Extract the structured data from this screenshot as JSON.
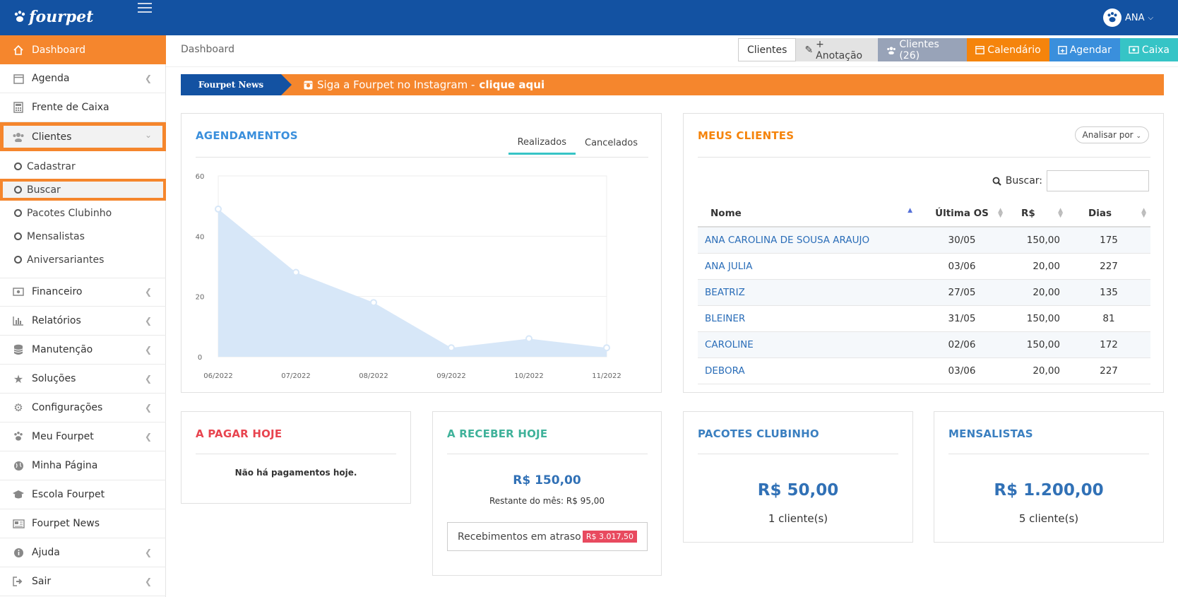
{
  "app": {
    "brand": "fourpet",
    "user": "ANA"
  },
  "colors": {
    "primary": "#1352a2",
    "accent": "#f5862d",
    "teal": "#36c4c6",
    "danger": "#e84a5f"
  },
  "sidebar": {
    "items": [
      {
        "label": "Dashboard",
        "icon": "home-icon"
      },
      {
        "label": "Agenda",
        "icon": "calendar-icon"
      },
      {
        "label": "Frente de Caixa",
        "icon": "calculator-icon"
      },
      {
        "label": "Clientes",
        "icon": "users-icon"
      },
      {
        "label": "Financeiro",
        "icon": "money-icon"
      },
      {
        "label": "Relatórios",
        "icon": "bar-chart-icon"
      },
      {
        "label": "Manutenção",
        "icon": "database-icon"
      },
      {
        "label": "Soluções",
        "icon": "star-icon"
      },
      {
        "label": "Configurações",
        "icon": "gears-icon"
      },
      {
        "label": "Meu Fourpet",
        "icon": "paw-icon"
      },
      {
        "label": "Minha Página",
        "icon": "globe-icon"
      },
      {
        "label": "Escola Fourpet",
        "icon": "graduation-cap-icon"
      },
      {
        "label": "Fourpet News",
        "icon": "newspaper-icon"
      },
      {
        "label": "Ajuda",
        "icon": "info-icon"
      },
      {
        "label": "Sair",
        "icon": "sign-out-icon"
      }
    ],
    "subitems": [
      "Cadastrar",
      "Buscar",
      "Pacotes Clubinho",
      "Mensalistas",
      "Aniversariantes"
    ]
  },
  "header": {
    "breadcrumb": "Dashboard",
    "buttons": [
      "Clientes",
      "+ Anotação",
      "Clientes (26)",
      "Calendário",
      "Agendar",
      "Caixa"
    ]
  },
  "news": {
    "tag": "Fourpet News",
    "text": "Siga a Fourpet no Instagram - ",
    "link": "clique aqui"
  },
  "agendamentos": {
    "title": "AGENDAMENTOS",
    "tabs": [
      "Realizados",
      "Cancelados"
    ]
  },
  "chart_data": {
    "type": "area",
    "x": [
      "06/2022",
      "07/2022",
      "08/2022",
      "09/2022",
      "10/2022",
      "11/2022"
    ],
    "series": [
      {
        "values": [
          49,
          28,
          18,
          3,
          6,
          3
        ]
      }
    ],
    "ylim": [
      0,
      60
    ],
    "yticks": [
      "0",
      "20",
      "40",
      "60"
    ],
    "grid": true,
    "color": "#d7e7f8"
  },
  "clientes": {
    "title": "MEUS CLIENTES",
    "analyze_label": "Analisar por",
    "search_label": "Buscar:",
    "search_value": "",
    "columns": [
      "Nome",
      "Última OS",
      "R$",
      "Dias"
    ],
    "rows": [
      [
        "ANA CAROLINA DE SOUSA ARAUJO",
        "30/05",
        "150,00",
        "175"
      ],
      [
        "ANA JULIA",
        "03/06",
        "20,00",
        "227"
      ],
      [
        "BEATRIZ",
        "27/05",
        "20,00",
        "135"
      ],
      [
        "BLEINER",
        "31/05",
        "150,00",
        "81"
      ],
      [
        "CAROLINE",
        "02/06",
        "150,00",
        "172"
      ],
      [
        "DEBORA",
        "03/06",
        "20,00",
        "227"
      ]
    ]
  },
  "pagar": {
    "title": "A PAGAR HOJE",
    "text": "Não há pagamentos hoje."
  },
  "receber": {
    "title": "A RECEBER HOJE",
    "amount": "R$ 150,00",
    "restante": "Restante do mês: R$ 95,00",
    "atraso_label": "Recebimentos em atraso",
    "atraso_value": "R$ 3.017,50"
  },
  "clubinho": {
    "title": "PACOTES CLUBINHO",
    "amount": "R$ 50,00",
    "count": "1 cliente(s)"
  },
  "mensalistas": {
    "title": "MENSALISTAS",
    "amount": "R$ 1.200,00",
    "count": "5 cliente(s)"
  }
}
